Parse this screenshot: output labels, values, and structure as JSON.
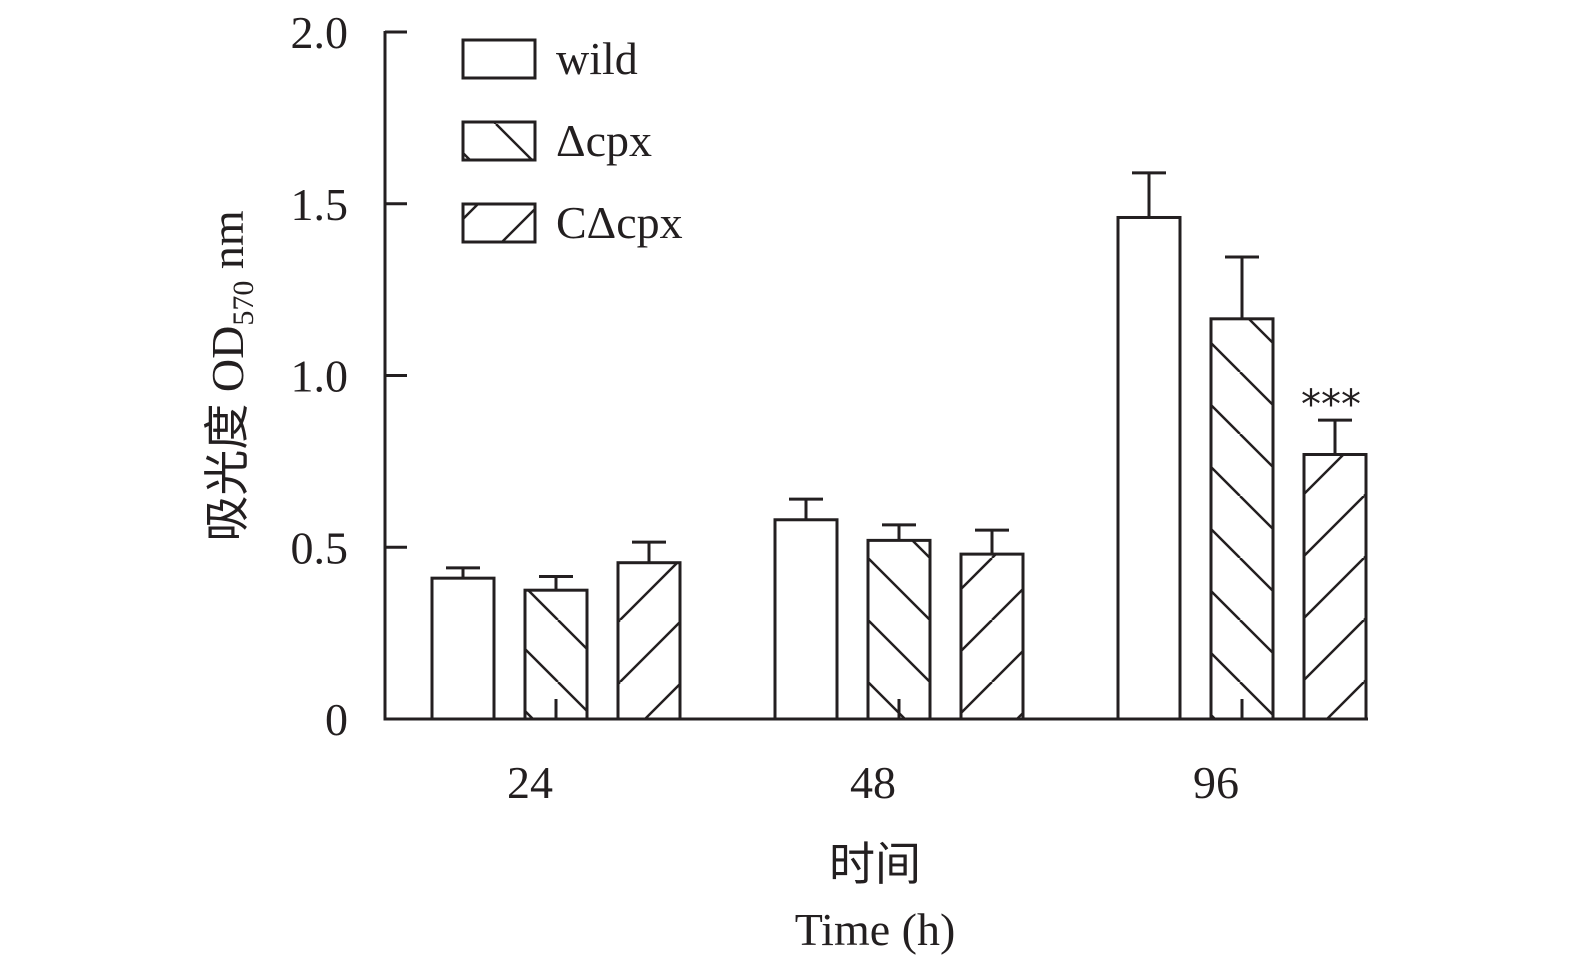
{
  "chart_data": {
    "type": "bar",
    "title": "",
    "xlabel": "时间",
    "xlabel_sub": "Time (h)",
    "ylabel": "吸光度 OD",
    "ylabel_subscript": "570",
    "ylabel_suffix": " nm",
    "categories": [
      "24",
      "48",
      "96"
    ],
    "ylim": [
      0,
      2.0
    ],
    "yticks": [
      0,
      0.5,
      1.0,
      1.5,
      2.0
    ],
    "ytick_labels": [
      "0",
      "0.5",
      "1.0",
      "1.5",
      "2.0"
    ],
    "grid": false,
    "legend_position": "top-left",
    "series": [
      {
        "name": "wild",
        "pattern": "none",
        "values": [
          0.41,
          0.58,
          1.46
        ],
        "errors": [
          0.03,
          0.06,
          0.13
        ]
      },
      {
        "name": "Δcpx",
        "pattern": "back-diagonal",
        "values": [
          0.375,
          0.52,
          1.165
        ],
        "errors": [
          0.04,
          0.045,
          0.18
        ]
      },
      {
        "name": "CΔcpx",
        "pattern": "forward-diagonal",
        "values": [
          0.455,
          0.48,
          0.77
        ],
        "errors": [
          0.06,
          0.07,
          0.1
        ]
      }
    ],
    "annotations": [
      {
        "category": "96",
        "series": "CΔcpx",
        "text": "***"
      }
    ],
    "colors": {
      "stroke": "#231f20",
      "fill": "#ffffff"
    }
  }
}
